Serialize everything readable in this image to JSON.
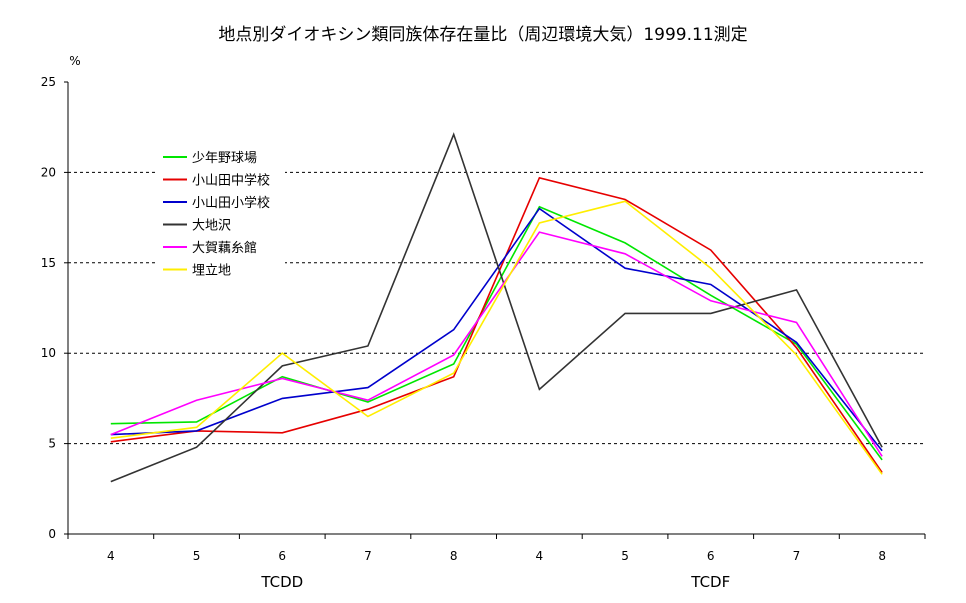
{
  "chart_data": {
    "type": "line",
    "title": "地点別ダイオキシン類同族体存在量比（周辺環境大気）1999.11測定",
    "ylabel": "%",
    "xlabel": "",
    "ylim": [
      0,
      25
    ],
    "yticks": [
      "0",
      "5",
      "10",
      "15",
      "20",
      "25"
    ],
    "categories": [
      "4",
      "5",
      "6",
      "7",
      "8",
      "4",
      "5",
      "6",
      "7",
      "8"
    ],
    "groups": [
      {
        "label": "TCDD",
        "categories": [
          "4",
          "5",
          "6",
          "7",
          "8"
        ]
      },
      {
        "label": "TCDF",
        "categories": [
          "4",
          "5",
          "6",
          "7",
          "8"
        ]
      }
    ],
    "grid": "horizontal-dashed",
    "legend_position": "top-left",
    "series": [
      {
        "name": "少年野球場",
        "color": "#00e600",
        "values": [
          6.1,
          6.2,
          8.7,
          7.3,
          9.4,
          18.1,
          16.1,
          13.2,
          10.5,
          4.1
        ]
      },
      {
        "name": "小山田中学校",
        "color": "#e60000",
        "values": [
          5.1,
          5.7,
          5.6,
          6.9,
          8.7,
          19.7,
          18.5,
          15.7,
          10.3,
          3.4
        ]
      },
      {
        "name": "小山田小学校",
        "color": "#0000cc",
        "values": [
          5.5,
          5.7,
          7.5,
          8.1,
          11.3,
          18.0,
          14.7,
          13.8,
          10.6,
          4.6
        ]
      },
      {
        "name": "大地沢",
        "color": "#333333",
        "values": [
          2.9,
          4.8,
          9.3,
          10.4,
          22.1,
          8.0,
          12.2,
          12.2,
          13.5,
          4.8
        ]
      },
      {
        "name": "大賀藕糸館",
        "color": "#ff00ff",
        "values": [
          5.5,
          7.4,
          8.6,
          7.4,
          9.9,
          16.7,
          15.5,
          12.9,
          11.7,
          4.3
        ]
      },
      {
        "name": "埋立地",
        "color": "#ffee00",
        "values": [
          5.3,
          5.9,
          10.0,
          6.5,
          8.9,
          17.2,
          18.4,
          14.7,
          9.9,
          3.3
        ]
      }
    ]
  }
}
